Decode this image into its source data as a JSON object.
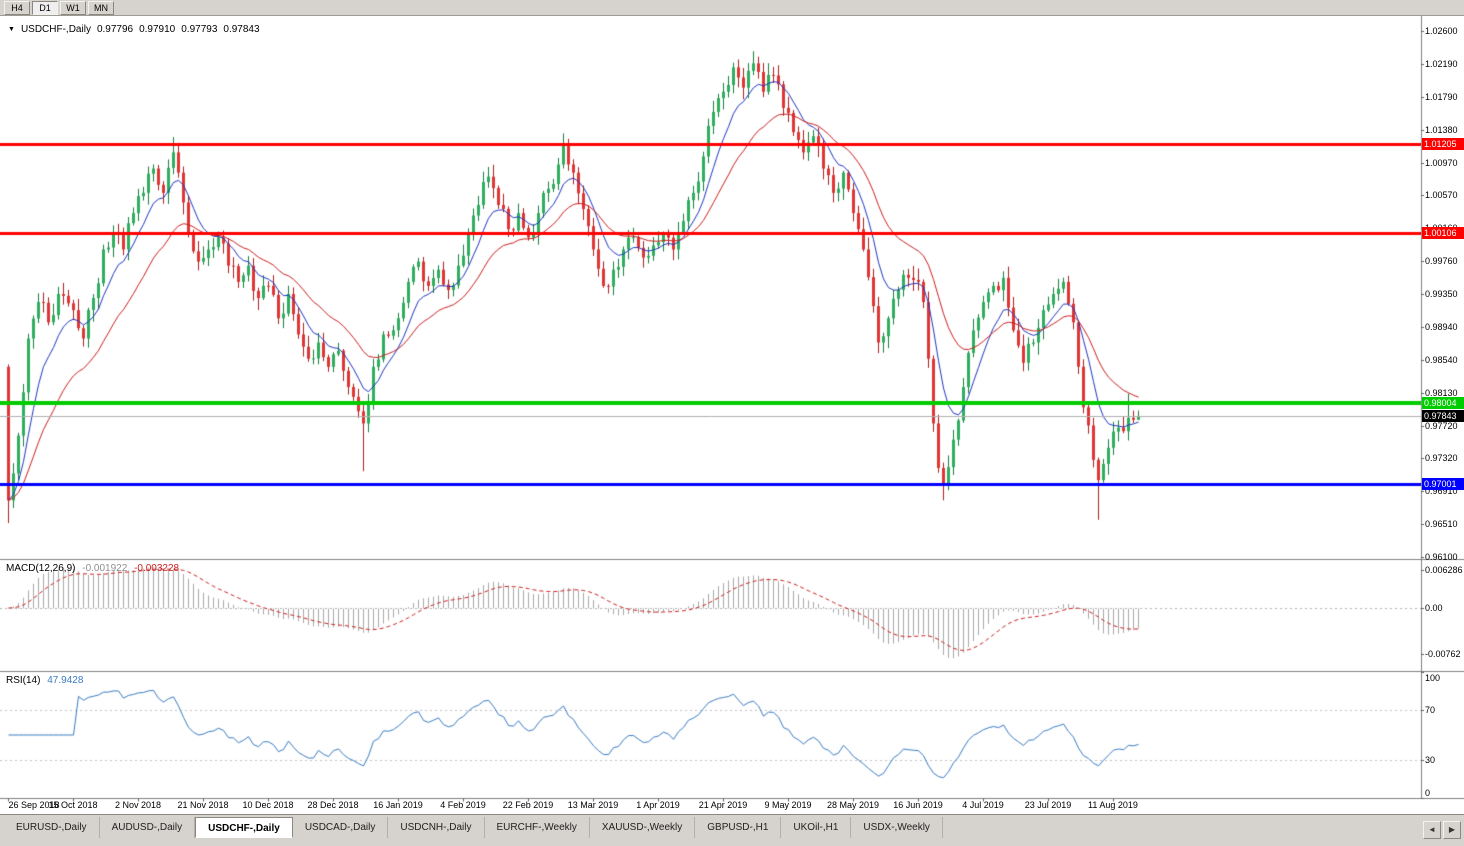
{
  "toolbar": {
    "timeframes": [
      "H4",
      "D1",
      "W1",
      "MN"
    ],
    "active": "D1"
  },
  "chart": {
    "dropdown_icon": "▼",
    "symbol_title": "USDCHF-,Daily",
    "ohlc": {
      "open": "0.97796",
      "high": "0.97910",
      "low": "0.97793",
      "close": "0.97843"
    }
  },
  "price_scale": {
    "labels": [
      "1.02600",
      "1.02190",
      "1.01790",
      "1.01380",
      "1.00970",
      "1.00570",
      "1.00160",
      "0.99760",
      "0.99350",
      "0.98940",
      "0.98540",
      "0.98130",
      "0.97720",
      "0.97320",
      "0.96910",
      "0.96510",
      "0.96100"
    ]
  },
  "levels": [
    {
      "name": "resistance-upper",
      "price": 1.01205,
      "label": "1.01205",
      "color": "#ff0000",
      "thickness": 3
    },
    {
      "name": "resistance-lower",
      "price": 1.00106,
      "label": "1.00106",
      "color": "#ff0000",
      "thickness": 3
    },
    {
      "name": "support-green",
      "price": 0.98004,
      "label": "0.98004",
      "color": "#00cc00",
      "thickness": 4
    },
    {
      "name": "support-blue",
      "price": 0.97001,
      "label": "0.97001",
      "color": "#0000ff",
      "thickness": 3
    }
  ],
  "current_price": {
    "value": 0.97843,
    "label": "0.97843",
    "tag_color": "#000000"
  },
  "indicators": {
    "macd": {
      "name": "MACD(12,26,9)",
      "value_main": "-0.001922",
      "value_signal": "-0.003228",
      "params": [
        12,
        26,
        9
      ],
      "scale_labels": [
        "0.006286",
        "0.00",
        "-0.00762"
      ]
    },
    "rsi": {
      "name": "RSI(14)",
      "value": "47.9428",
      "period": 14,
      "levels": [
        70,
        30
      ],
      "scale_labels": [
        "100",
        "70",
        "30",
        "0"
      ]
    }
  },
  "date_axis": {
    "labels": [
      "26 Sep 2018",
      "15 Oct 2018",
      "2 Nov 2018",
      "21 Nov 2018",
      "10 Dec 2018",
      "28 Dec 2018",
      "16 Jan 2019",
      "4 Feb 2019",
      "22 Feb 2019",
      "13 Mar 2019",
      "1 Apr 2019",
      "21 Apr 2019",
      "9 May 2019",
      "28 May 2019",
      "16 Jun 2019",
      "4 Jul 2019",
      "23 Jul 2019",
      "11 Aug 2019"
    ]
  },
  "tabbar": {
    "tabs": [
      "EURUSD-,Daily",
      "AUDUSD-,Daily",
      "USDCHF-,Daily",
      "USDCAD-,Daily",
      "USDCNH-,Daily",
      "EURCHF-,Weekly",
      "XAUUSD-,Weekly",
      "GBPUSD-,H1",
      "UKOil-,H1",
      "USDX-,Weekly"
    ],
    "active_index": 2,
    "left_arrow": "◄",
    "right_arrow": "▶"
  },
  "chart_data": {
    "type": "candlestick",
    "symbol": "USDCHF",
    "timeframe": "Daily",
    "y_range": [
      0.961,
      1.026
    ],
    "first_open": 0.9845,
    "last_bar": {
      "open": 0.97796,
      "high": 0.9791,
      "low": 0.97793,
      "close": 0.97843
    },
    "anchors": [
      [
        0,
        0.968
      ],
      [
        2,
        0.976
      ],
      [
        4,
        0.988
      ],
      [
        6,
        0.9925
      ],
      [
        8,
        0.99
      ],
      [
        10,
        0.9935
      ],
      [
        13,
        0.9915
      ],
      [
        15,
        0.988
      ],
      [
        17,
        0.993
      ],
      [
        19,
        0.999
      ],
      [
        21,
        1.001
      ],
      [
        23,
        0.999
      ],
      [
        25,
        1.0035
      ],
      [
        27,
        1.006
      ],
      [
        29,
        1.009
      ],
      [
        31,
        1.006
      ],
      [
        33,
        1.011
      ],
      [
        34,
        1.0085
      ],
      [
        36,
        1.001
      ],
      [
        38,
        0.9975
      ],
      [
        40,
        0.999
      ],
      [
        42,
        1.0005
      ],
      [
        44,
        0.997
      ],
      [
        46,
        0.995
      ],
      [
        48,
        0.997
      ],
      [
        50,
        0.993
      ],
      [
        52,
        0.9945
      ],
      [
        54,
        0.9905
      ],
      [
        56,
        0.9935
      ],
      [
        58,
        0.9885
      ],
      [
        60,
        0.9855
      ],
      [
        62,
        0.9875
      ],
      [
        64,
        0.9845
      ],
      [
        66,
        0.9865
      ],
      [
        68,
        0.982
      ],
      [
        70,
        0.979
      ],
      [
        71,
        0.9775
      ],
      [
        73,
        0.9845
      ],
      [
        75,
        0.9885
      ],
      [
        78,
        0.9905
      ],
      [
        80,
        0.995
      ],
      [
        82,
        0.9975
      ],
      [
        84,
        0.9945
      ],
      [
        86,
        0.9965
      ],
      [
        88,
        0.994
      ],
      [
        90,
        0.997
      ],
      [
        92,
        1.001
      ],
      [
        94,
        1.0045
      ],
      [
        96,
        1.008
      ],
      [
        98,
        1.0045
      ],
      [
        100,
        1.0015
      ],
      [
        102,
        1.0035
      ],
      [
        104,
        1.0005
      ],
      [
        106,
        1.0035
      ],
      [
        108,
        1.0065
      ],
      [
        110,
        1.0095
      ],
      [
        111,
        1.012
      ],
      [
        113,
        1.0085
      ],
      [
        115,
        1.004
      ],
      [
        117,
        0.999
      ],
      [
        119,
        0.9945
      ],
      [
        121,
        0.9965
      ],
      [
        123,
        0.999
      ],
      [
        125,
        1.0005
      ],
      [
        127,
        0.998
      ],
      [
        129,
        0.9995
      ],
      [
        131,
        1.001
      ],
      [
        133,
        0.999
      ],
      [
        135,
        1.0025
      ],
      [
        137,
        1.006
      ],
      [
        139,
        1.0105
      ],
      [
        141,
        1.016
      ],
      [
        143,
        1.0185
      ],
      [
        145,
        1.0215
      ],
      [
        147,
        1.019
      ],
      [
        149,
        1.022
      ],
      [
        151,
        1.0185
      ],
      [
        153,
        1.0205
      ],
      [
        155,
        1.0165
      ],
      [
        157,
        1.0135
      ],
      [
        159,
        1.011
      ],
      [
        161,
        1.013
      ],
      [
        163,
        1.009
      ],
      [
        165,
        1.006
      ],
      [
        167,
        1.0085
      ],
      [
        169,
        1.0035
      ],
      [
        171,
        0.999
      ],
      [
        173,
        0.992
      ],
      [
        174,
        0.9875
      ],
      [
        176,
        0.9905
      ],
      [
        178,
        0.994
      ],
      [
        180,
        0.9955
      ],
      [
        182,
        0.995
      ],
      [
        183,
        0.9925
      ],
      [
        184,
        0.9855
      ],
      [
        185,
        0.9775
      ],
      [
        186,
        0.972
      ],
      [
        187,
        0.97
      ],
      [
        189,
        0.9755
      ],
      [
        191,
        0.982
      ],
      [
        193,
        0.989
      ],
      [
        195,
        0.9925
      ],
      [
        197,
        0.9945
      ],
      [
        199,
        0.9955
      ],
      [
        201,
        0.989
      ],
      [
        203,
        0.985
      ],
      [
        205,
        0.9875
      ],
      [
        207,
        0.9915
      ],
      [
        209,
        0.9935
      ],
      [
        211,
        0.995
      ],
      [
        213,
        0.99
      ],
      [
        215,
        0.9795
      ],
      [
        217,
        0.973
      ],
      [
        218,
        0.9705
      ],
      [
        219,
        0.9725
      ],
      [
        220,
        0.9745
      ],
      [
        222,
        0.977
      ],
      [
        224,
        0.9782
      ],
      [
        225,
        0.97796
      ],
      [
        226,
        0.97843
      ]
    ],
    "wick_highs": {
      "33": 1.0129,
      "96": 1.0092,
      "111": 1.0131,
      "149": 1.0235,
      "224": 0.9812
    },
    "wick_lows": {
      "0": 0.9652,
      "71": 0.9716,
      "187": 0.968,
      "218": 0.9656
    },
    "ma_fast_period": 8,
    "ma_slow_period": 21,
    "colors": {
      "up": "#2eae5e",
      "up_border": "#17813f",
      "down": "#e03535",
      "down_border": "#b01f1f",
      "ma_fast": "#2038c0",
      "ma_slow": "#cc2020",
      "macd_hist": "#a9a9a9",
      "macd_signal": "#cc2020",
      "rsi_line": "#3b7cc4",
      "bid_line": "#b0b0b0"
    }
  }
}
